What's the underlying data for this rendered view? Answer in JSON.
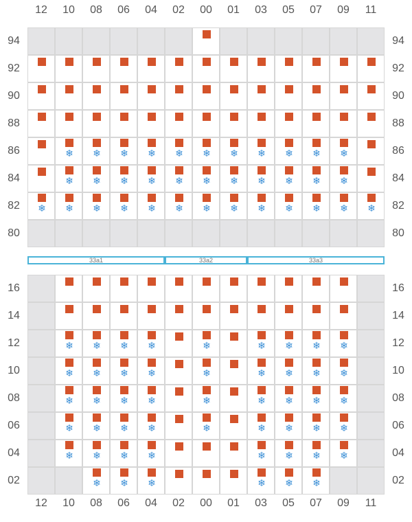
{
  "columns": [
    "12",
    "10",
    "08",
    "06",
    "04",
    "02",
    "00",
    "01",
    "03",
    "05",
    "07",
    "09",
    "11"
  ],
  "upper_block": {
    "rows": [
      {
        "label": "94",
        "off": [
          0,
          1,
          2,
          3,
          4,
          5,
          7,
          8,
          9,
          10,
          11,
          12
        ],
        "mark": [
          6
        ],
        "frost": []
      },
      {
        "label": "92",
        "off": [],
        "mark": [
          0,
          1,
          2,
          3,
          4,
          5,
          6,
          7,
          8,
          9,
          10,
          11,
          12
        ],
        "frost": []
      },
      {
        "label": "90",
        "off": [],
        "mark": [
          0,
          1,
          2,
          3,
          4,
          5,
          6,
          7,
          8,
          9,
          10,
          11,
          12
        ],
        "frost": []
      },
      {
        "label": "88",
        "off": [],
        "mark": [
          0,
          1,
          2,
          3,
          4,
          5,
          6,
          7,
          8,
          9,
          10,
          11,
          12
        ],
        "frost": []
      },
      {
        "label": "86",
        "off": [],
        "mark": [
          0,
          1,
          2,
          3,
          4,
          5,
          6,
          7,
          8,
          9,
          10,
          11,
          12
        ],
        "frost": [
          1,
          2,
          3,
          4,
          5,
          6,
          7,
          8,
          9,
          10,
          11
        ]
      },
      {
        "label": "84",
        "off": [],
        "mark": [
          0,
          1,
          2,
          3,
          4,
          5,
          6,
          7,
          8,
          9,
          10,
          11,
          12
        ],
        "frost": [
          1,
          2,
          3,
          4,
          5,
          6,
          7,
          8,
          9,
          10,
          11
        ]
      },
      {
        "label": "82",
        "off": [],
        "mark": [
          0,
          1,
          2,
          3,
          4,
          5,
          6,
          7,
          8,
          9,
          10,
          11,
          12
        ],
        "frost": [
          0,
          1,
          2,
          3,
          4,
          5,
          6,
          7,
          8,
          9,
          10,
          11,
          12
        ]
      },
      {
        "label": "80",
        "off": [
          0,
          1,
          2,
          3,
          4,
          5,
          6,
          7,
          8,
          9,
          10,
          11,
          12
        ],
        "mark": [],
        "frost": []
      }
    ]
  },
  "segments": [
    {
      "label": "33a1",
      "from": 0,
      "to": 5
    },
    {
      "label": "33a2",
      "from": 5,
      "to": 8
    },
    {
      "label": "33a3",
      "from": 8,
      "to": 13
    }
  ],
  "lower_block": {
    "rows": [
      {
        "label": "16",
        "off": [
          0,
          12
        ],
        "mark": [
          1,
          2,
          3,
          4,
          5,
          6,
          7,
          8,
          9,
          10,
          11
        ],
        "frost": []
      },
      {
        "label": "14",
        "off": [
          0,
          12
        ],
        "mark": [
          1,
          2,
          3,
          4,
          5,
          6,
          7,
          8,
          9,
          10,
          11
        ],
        "frost": []
      },
      {
        "label": "12",
        "off": [
          0,
          12
        ],
        "mark": [
          1,
          2,
          3,
          4,
          5,
          6,
          7,
          8,
          9,
          10,
          11
        ],
        "frost": [
          1,
          2,
          3,
          4,
          6,
          8,
          9,
          10,
          11
        ]
      },
      {
        "label": "10",
        "off": [
          0,
          12
        ],
        "mark": [
          1,
          2,
          3,
          4,
          5,
          6,
          7,
          8,
          9,
          10,
          11
        ],
        "frost": [
          1,
          2,
          3,
          4,
          6,
          8,
          9,
          10,
          11
        ]
      },
      {
        "label": "08",
        "off": [
          0,
          12
        ],
        "mark": [
          1,
          2,
          3,
          4,
          5,
          6,
          7,
          8,
          9,
          10,
          11
        ],
        "frost": [
          1,
          2,
          3,
          4,
          6,
          8,
          9,
          10,
          11
        ]
      },
      {
        "label": "06",
        "off": [
          0,
          12
        ],
        "mark": [
          1,
          2,
          3,
          4,
          5,
          6,
          7,
          8,
          9,
          10,
          11
        ],
        "frost": [
          1,
          2,
          3,
          4,
          6,
          8,
          9,
          10,
          11
        ]
      },
      {
        "label": "04",
        "off": [
          0,
          12
        ],
        "mark": [
          1,
          2,
          3,
          4,
          5,
          6,
          7,
          8,
          9,
          10,
          11
        ],
        "frost": [
          1,
          2,
          3,
          4,
          8,
          9,
          10,
          11
        ]
      },
      {
        "label": "02",
        "off": [
          0,
          1,
          11,
          12
        ],
        "mark": [
          2,
          3,
          4,
          5,
          6,
          7,
          8,
          9,
          10
        ],
        "frost": [
          2,
          3,
          4,
          8,
          9,
          10
        ]
      }
    ]
  },
  "icons": {
    "mark": "container-marker-icon",
    "frost": "snowflake-icon"
  },
  "snowflake_glyph": "❄",
  "colors": {
    "mark": "#d4532a",
    "frost": "#3b8fd6",
    "disabled": "#e4e4e6",
    "grid": "#d6d6d6",
    "segment": "#4ab3d8"
  }
}
